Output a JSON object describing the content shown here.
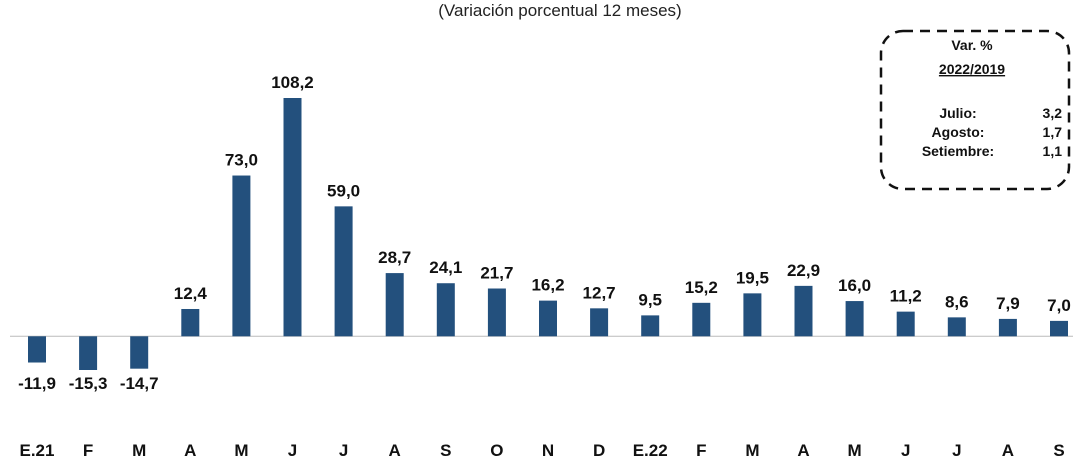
{
  "chart_data": {
    "type": "bar",
    "subtitle": "(Variación porcentual 12 meses)",
    "categories": [
      "E.21",
      "F",
      "M",
      "A",
      "M",
      "J",
      "J",
      "A",
      "S",
      "O",
      "N",
      "D",
      "E.22",
      "F",
      "M",
      "A",
      "M",
      "J",
      "J",
      "A",
      "S"
    ],
    "values": [
      -11.9,
      -15.3,
      -14.7,
      12.4,
      73.0,
      108.2,
      59.0,
      28.7,
      24.1,
      21.7,
      16.2,
      12.7,
      9.5,
      15.2,
      19.5,
      22.9,
      16.0,
      11.2,
      8.6,
      7.9,
      7.0
    ],
    "value_labels": [
      "-11,9",
      "-15,3",
      "-14,7",
      "12,4",
      "73,0",
      "108,2",
      "59,0",
      "28,7",
      "24,1",
      "21,7",
      "16,2",
      "12,7",
      "9,5",
      "15,2",
      "19,5",
      "22,9",
      "16,0",
      "11,2",
      "8,6",
      "7,9",
      "7,0"
    ],
    "color": "#23507d",
    "annotation": {
      "title": "Var. %",
      "subtitle": "2022/2019",
      "rows": [
        [
          "Julio:",
          "3,2"
        ],
        [
          "Agosto:",
          "1,7"
        ],
        [
          "Setiembre:",
          "1,1"
        ]
      ]
    }
  }
}
